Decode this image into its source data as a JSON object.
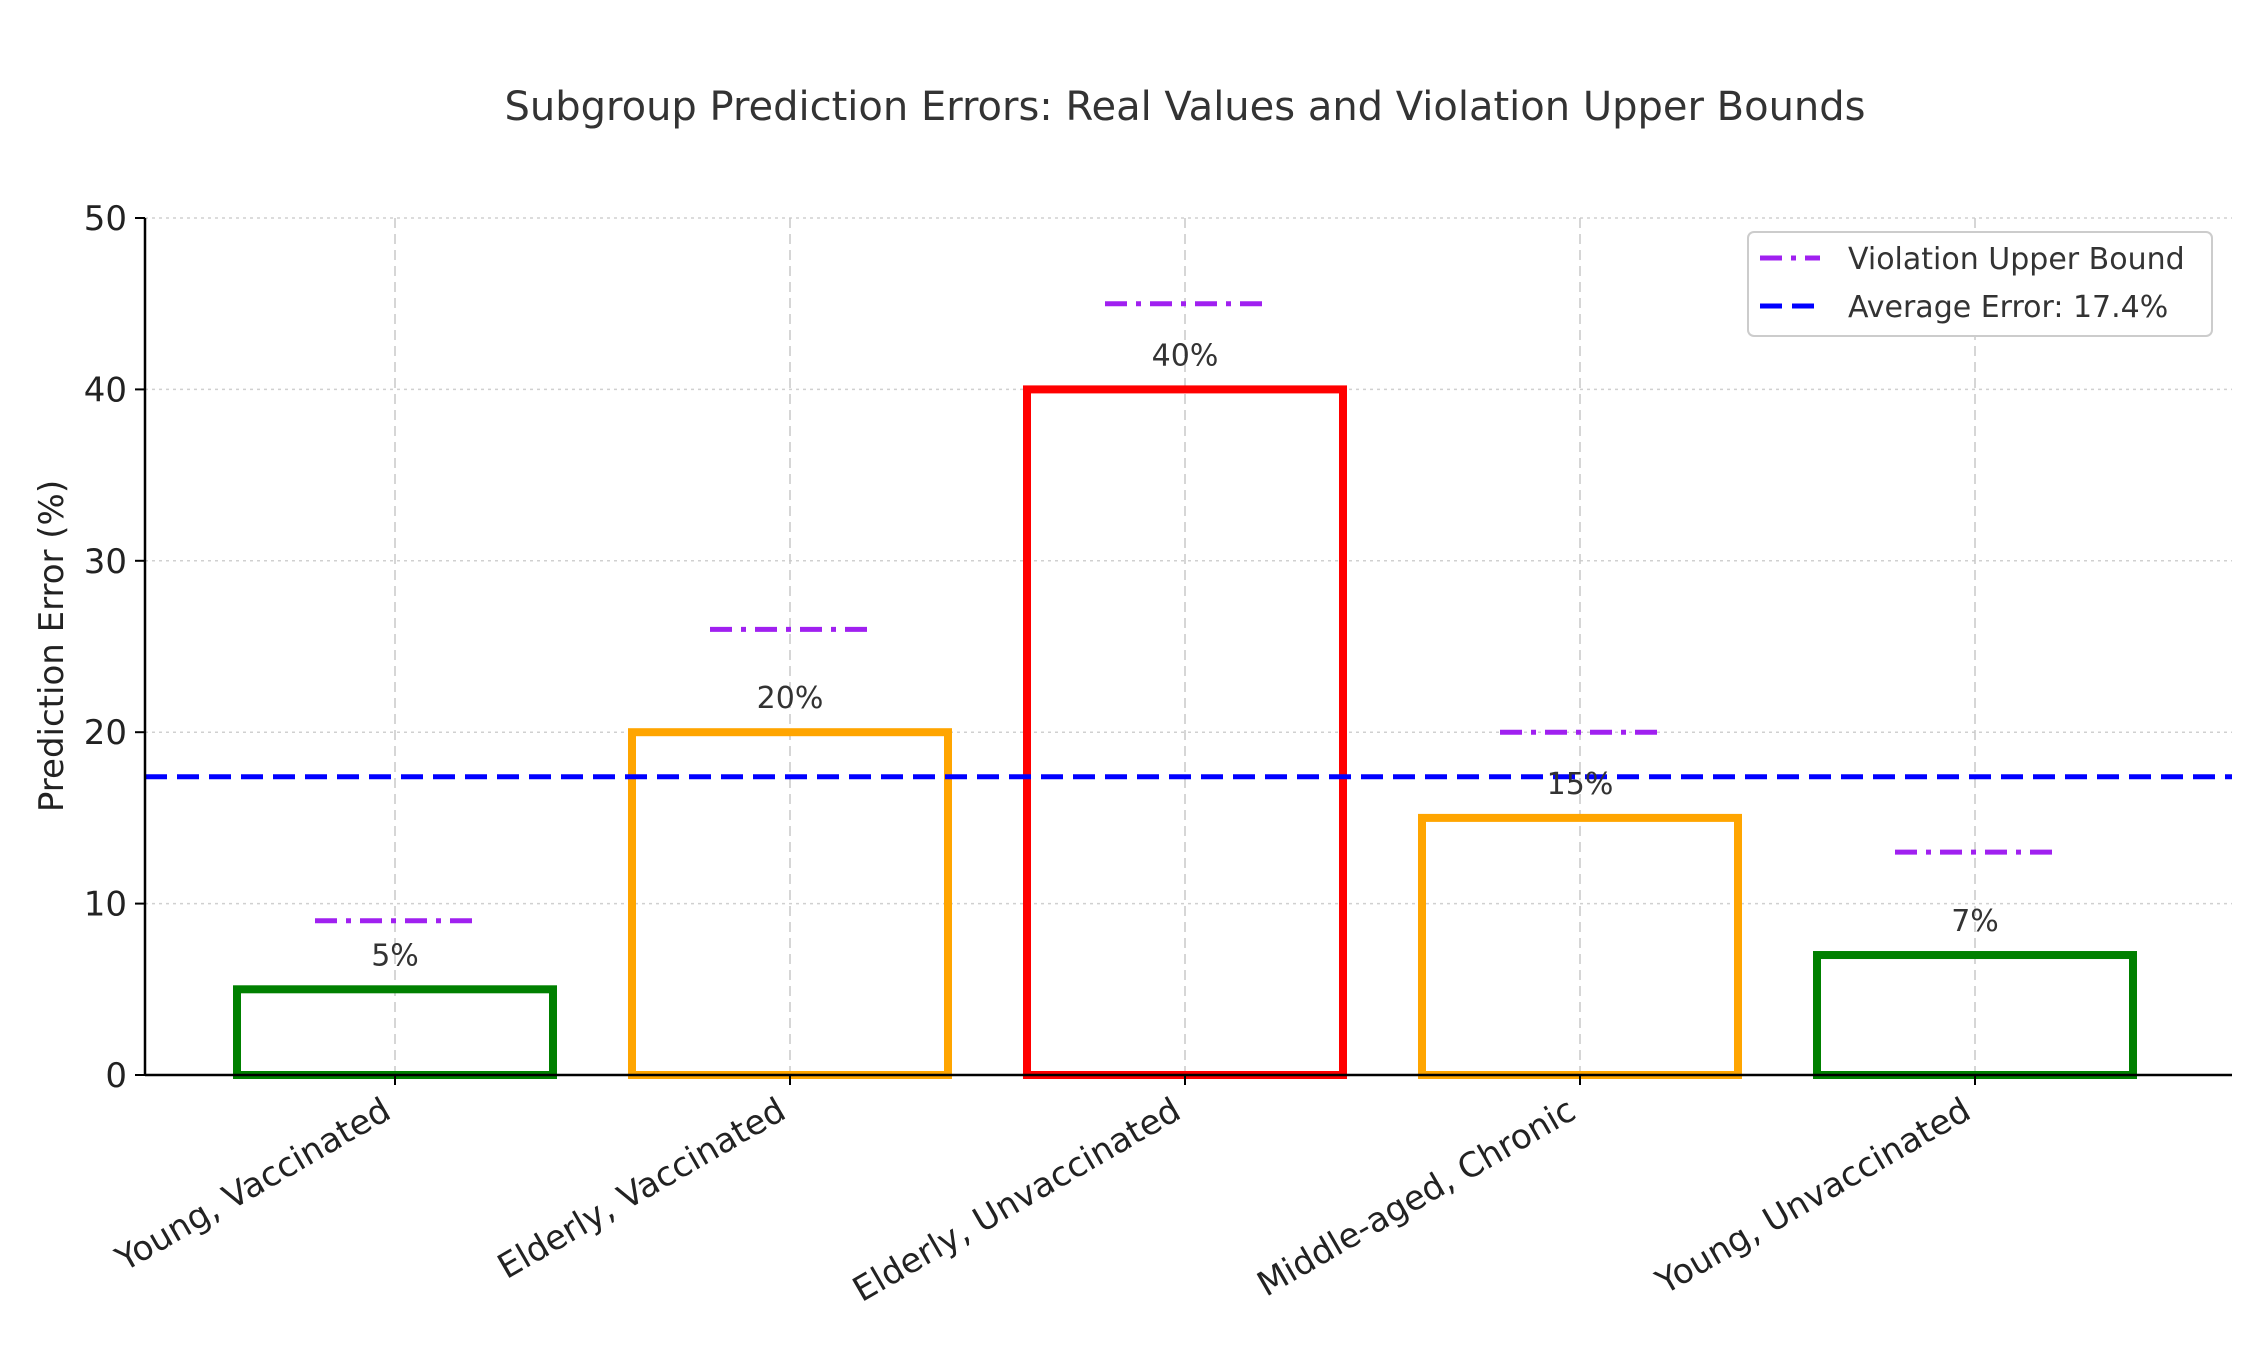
{
  "chart_data": {
    "type": "bar",
    "title": "Subgroup Prediction Errors: Real Values and Violation Upper Bounds",
    "xlabel": "",
    "ylabel": "Prediction Error (%)",
    "ylim": [
      0,
      50
    ],
    "yticks": [
      0,
      10,
      20,
      30,
      40,
      50
    ],
    "grid": true,
    "legend_position": "top-right",
    "categories": [
      "Young, Vaccinated",
      "Elderly, Vaccinated",
      "Elderly, Unvaccinated",
      "Middle-aged, Chronic",
      "Young, Unvaccinated"
    ],
    "values": [
      5,
      20,
      40,
      15,
      7
    ],
    "value_labels": [
      "5%",
      "20%",
      "40%",
      "15%",
      "7%"
    ],
    "bar_colors": [
      "#008000",
      "#FFA500",
      "#FF0000",
      "#FFA500",
      "#008000"
    ],
    "upper_bounds": [
      9,
      26,
      45,
      20,
      13
    ],
    "upper_bound_color": "#A020F0",
    "average_error": 17.4,
    "average_color": "#0000FF",
    "legend": [
      {
        "label": "Violation Upper Bound",
        "style": "dashdot",
        "color": "#A020F0"
      },
      {
        "label": "Average Error: 17.4%",
        "style": "dashed",
        "color": "#0000FF"
      }
    ]
  }
}
